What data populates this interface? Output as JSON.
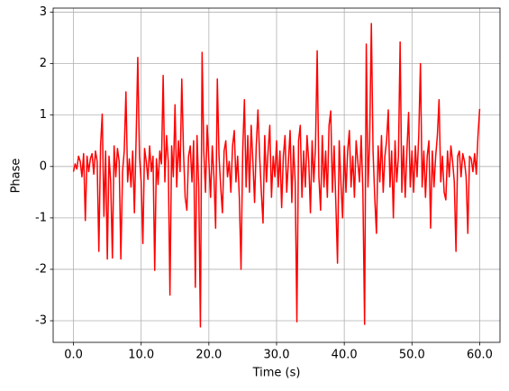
{
  "chart_data": {
    "type": "line",
    "xlabel": "Time (s)",
    "ylabel": "Phase",
    "xlim": [
      -3,
      63
    ],
    "ylim": [
      -3.42,
      3.08
    ],
    "xticks": [
      {
        "value": 0,
        "label": "0.0"
      },
      {
        "value": 10,
        "label": "10.0"
      },
      {
        "value": 20,
        "label": "20.0"
      },
      {
        "value": 30,
        "label": "30.0"
      },
      {
        "value": 40,
        "label": "40.0"
      },
      {
        "value": 50,
        "label": "50.0"
      },
      {
        "value": 60,
        "label": "60.0"
      }
    ],
    "yticks": [
      -3,
      -2,
      -1,
      0,
      1,
      2,
      3
    ],
    "grid": true,
    "color": "#ff0000",
    "x": [
      0,
      0.25,
      0.5,
      0.75,
      1,
      1.25,
      1.5,
      1.75,
      2,
      2.25,
      2.5,
      2.75,
      3,
      3.25,
      3.5,
      3.75,
      4,
      4.25,
      4.5,
      4.75,
      5,
      5.25,
      5.5,
      5.75,
      6,
      6.25,
      6.5,
      6.75,
      7,
      7.25,
      7.5,
      7.75,
      8,
      8.25,
      8.5,
      8.75,
      9,
      9.25,
      9.5,
      9.75,
      10,
      10.25,
      10.5,
      10.75,
      11,
      11.25,
      11.5,
      11.75,
      12,
      12.25,
      12.5,
      12.75,
      13,
      13.25,
      13.5,
      13.75,
      14,
      14.25,
      14.5,
      14.75,
      15,
      15.25,
      15.5,
      15.75,
      16,
      16.25,
      16.5,
      16.75,
      17,
      17.25,
      17.5,
      17.75,
      18,
      18.25,
      18.5,
      18.75,
      19,
      19.25,
      19.5,
      19.75,
      20,
      20.25,
      20.5,
      20.75,
      21,
      21.25,
      21.5,
      21.75,
      22,
      22.25,
      22.5,
      22.75,
      23,
      23.25,
      23.5,
      23.75,
      24,
      24.25,
      24.5,
      24.75,
      25,
      25.25,
      25.5,
      25.75,
      26,
      26.25,
      26.5,
      26.75,
      27,
      27.25,
      27.5,
      27.75,
      28,
      28.25,
      28.5,
      28.75,
      29,
      29.25,
      29.5,
      29.75,
      30,
      30.25,
      30.5,
      30.75,
      31,
      31.25,
      31.5,
      31.75,
      32,
      32.25,
      32.5,
      32.75,
      33,
      33.25,
      33.5,
      33.75,
      34,
      34.25,
      34.5,
      34.75,
      35,
      35.25,
      35.5,
      35.75,
      36,
      36.25,
      36.5,
      36.75,
      37,
      37.25,
      37.5,
      37.75,
      38,
      38.25,
      38.5,
      38.75,
      39,
      39.25,
      39.5,
      39.75,
      40,
      40.25,
      40.5,
      40.75,
      41,
      41.25,
      41.5,
      41.75,
      42,
      42.25,
      42.5,
      42.75,
      43,
      43.25,
      43.5,
      43.75,
      44,
      44.25,
      44.5,
      44.75,
      45,
      45.25,
      45.5,
      45.75,
      46,
      46.25,
      46.5,
      46.75,
      47,
      47.25,
      47.5,
      47.75,
      48,
      48.25,
      48.5,
      48.75,
      49,
      49.25,
      49.5,
      49.75,
      50,
      50.25,
      50.5,
      50.75,
      51,
      51.25,
      51.5,
      51.75,
      52,
      52.25,
      52.5,
      52.75,
      53,
      53.25,
      53.5,
      53.75,
      54,
      54.25,
      54.5,
      54.75,
      55,
      55.25,
      55.5,
      55.75,
      56,
      56.25,
      56.5,
      56.75,
      57,
      57.25,
      57.5,
      57.75,
      58,
      58.25,
      58.5,
      58.75,
      59,
      59.25,
      59.5,
      59.75,
      60
    ],
    "values": [
      -0.1,
      0.05,
      -0.05,
      0.2,
      0.1,
      -0.2,
      0.25,
      -1.05,
      0.2,
      -0.1,
      0.15,
      0.25,
      -0.15,
      0.3,
      0.1,
      -1.65,
      0.4,
      1.02,
      -0.97,
      0.3,
      -1.8,
      0.2,
      -0.3,
      -1.78,
      0.4,
      -0.2,
      0.35,
      0.1,
      -1.8,
      -0.1,
      0.3,
      1.45,
      -0.3,
      0.15,
      -0.4,
      0.3,
      -0.9,
      0.5,
      2.12,
      0.2,
      -0.3,
      -1.5,
      0.35,
      0.1,
      -0.25,
      0.4,
      -0.1,
      0.2,
      -2.02,
      0.15,
      -0.35,
      0.3,
      0.05,
      1.77,
      -0.3,
      0.6,
      0.1,
      -2.5,
      0.4,
      -0.2,
      1.2,
      -0.4,
      0.5,
      -0.1,
      1.7,
      0.3,
      -0.6,
      -0.85,
      0.2,
      0.4,
      -0.3,
      0.5,
      -2.35,
      0.6,
      -0.4,
      -3.12,
      2.22,
      0.3,
      -0.5,
      0.8,
      0.1,
      -0.6,
      0.4,
      -0.2,
      -1.2,
      1.7,
      0.2,
      -0.4,
      -0.9,
      0.3,
      0.5,
      -0.2,
      0.1,
      -0.5,
      0.4,
      0.7,
      -0.3,
      0.2,
      -0.6,
      -2.0,
      0.3,
      1.3,
      -0.4,
      0.6,
      -0.5,
      0.8,
      0.1,
      -0.7,
      0.4,
      1.1,
      0.2,
      -0.5,
      -1.1,
      0.6,
      -0.3,
      0.3,
      0.8,
      -0.6,
      0.2,
      -0.2,
      0.5,
      -0.4,
      0.3,
      -0.8,
      0.2,
      0.6,
      -0.5,
      0.1,
      0.7,
      -0.7,
      0.4,
      -0.3,
      -3.02,
      0.5,
      0.8,
      -0.6,
      0.3,
      -0.4,
      0.6,
      0.1,
      -0.9,
      0.5,
      -0.3,
      0.4,
      2.25,
      -0.2,
      -0.85,
      0.6,
      -0.4,
      0.3,
      -0.6,
      0.8,
      1.08,
      -0.5,
      0.4,
      -0.7,
      -1.88,
      0.5,
      -0.3,
      -1.0,
      0.4,
      -0.5,
      0.3,
      0.7,
      -0.4,
      0.2,
      -0.6,
      0.5,
      0.1,
      -0.3,
      0.6,
      -0.5,
      -3.07,
      2.38,
      -0.4,
      0.5,
      2.78,
      0.3,
      -0.6,
      -1.3,
      0.4,
      -0.3,
      0.6,
      -0.5,
      0.2,
      0.5,
      1.1,
      -0.4,
      0.3,
      -1.0,
      0.5,
      -0.3,
      0.2,
      2.42,
      -0.5,
      0.4,
      -0.6,
      0.3,
      1.05,
      -0.4,
      0.3,
      -0.5,
      0.4,
      -0.2,
      0.6,
      2.0,
      -0.4,
      0.3,
      -0.6,
      0.2,
      0.5,
      -1.2,
      0.3,
      -0.4,
      0.2,
      0.6,
      1.3,
      -0.3,
      0.2,
      -0.5,
      -0.65,
      0.3,
      -0.2,
      0.4,
      0.1,
      -0.3,
      -1.65,
      0.2,
      0.3,
      -0.2,
      0.25,
      0.1,
      -0.2,
      -1.3,
      0.2,
      0.15,
      -0.1,
      0.25,
      -0.15,
      0.6,
      1.12
    ]
  }
}
